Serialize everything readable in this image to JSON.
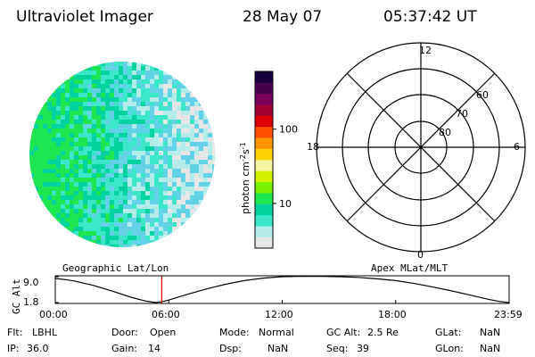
{
  "header": {
    "instrument": "Ultraviolet Imager",
    "date": "28 May 07",
    "time": "05:37:42 UT"
  },
  "colorbar": {
    "label": "photon cm",
    "label_sup1": "-2",
    "label_mid": "s",
    "label_sup2": "-1",
    "ticks": [
      {
        "value": 100,
        "text": "100"
      },
      {
        "value": 10,
        "text": "10"
      }
    ],
    "scale": "log",
    "range": [
      2.5,
      600
    ],
    "colors": [
      "#e6e6e6",
      "#b4ecec",
      "#3ce6c8",
      "#00d2a0",
      "#1ee650",
      "#78f000",
      "#d2f000",
      "#f5f5a0",
      "#ffd200",
      "#ff9600",
      "#ff5000",
      "#dc0000",
      "#a00032",
      "#78005a",
      "#46004b",
      "#14003c"
    ]
  },
  "polar_plot": {
    "hour_labels": [
      {
        "value": 12,
        "text": "12"
      },
      {
        "value": 18,
        "text": "18"
      },
      {
        "value": 6,
        "text": "6"
      },
      {
        "value": 0,
        "text": "0"
      }
    ],
    "lat_labels": [
      {
        "value": 60,
        "text": "60"
      },
      {
        "value": 70,
        "text": "70"
      },
      {
        "value": 80,
        "text": "80"
      }
    ]
  },
  "timeline": {
    "left_title": "Geographic Lat/Lon",
    "right_title": "Apex MLat/MLT",
    "ylabel": "GC Alt",
    "yticks": [
      {
        "value": 9.0,
        "text": "9.0"
      },
      {
        "value": 1.8,
        "text": "1.8"
      }
    ],
    "xticks": [
      "00:00",
      "06:00",
      "12:00",
      "18:00",
      "23:59"
    ],
    "current_time_hours": 5.628,
    "marker_color": "#e00000"
  },
  "chart_data": {
    "type": "line",
    "title": "",
    "xlabel": "",
    "ylabel": "GC Alt",
    "xlim": [
      0,
      24
    ],
    "ylim": [
      1.8,
      9.0
    ],
    "series": [
      {
        "x": [
          0,
          0.5,
          1,
          2,
          3,
          4,
          4.8,
          5.3,
          5.6,
          6,
          7,
          8,
          9,
          10,
          11,
          12,
          13,
          14,
          15,
          16,
          17,
          18,
          19,
          20,
          21,
          22,
          23,
          23.5,
          24
        ],
        "values": [
          8.5,
          8.2,
          7.8,
          6.6,
          5.0,
          3.3,
          2.2,
          1.8,
          2.0,
          2.5,
          4.1,
          5.6,
          6.9,
          7.9,
          8.6,
          9.0,
          9.1,
          9.1,
          9.0,
          8.8,
          8.4,
          7.9,
          7.1,
          6.1,
          5.0,
          3.8,
          2.6,
          2.1,
          1.8
        ]
      }
    ]
  },
  "footer": {
    "rows": [
      [
        {
          "label": "Flt:",
          "value": "LBHL"
        },
        {
          "label": "Door:",
          "value": "Open"
        },
        {
          "label": "Mode:",
          "value": "Normal"
        },
        {
          "label": "GC Alt:",
          "value": "2.5 Re"
        },
        {
          "label": "GLat:",
          "value": "NaN"
        }
      ],
      [
        {
          "label": "IP:",
          "value": "36.0"
        },
        {
          "label": "Gain:",
          "value": "14"
        },
        {
          "label": "Dsp:",
          "value": "NaN"
        },
        {
          "label": "Seq:",
          "value": "39"
        },
        {
          "label": "GLon:",
          "value": "NaN"
        }
      ]
    ]
  }
}
